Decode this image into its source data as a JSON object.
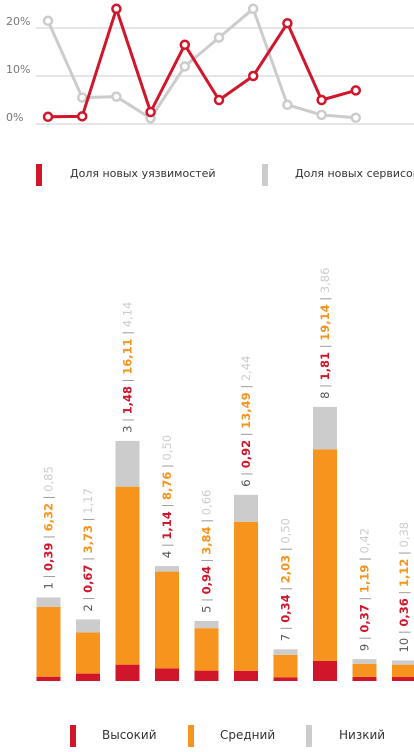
{
  "colors": {
    "red": "#d1162b",
    "grey": "#cccccc",
    "orange": "#f7941d",
    "axis_text": "#777777",
    "grid": "#cccccc",
    "label_text": "#555555"
  },
  "line_legend": {
    "vuln_label": "Доля новых уязвимостей",
    "services_label": "Доля новых сервисов"
  },
  "bar_legend": {
    "high_label": "Высокий",
    "medium_label": "Средний",
    "low_label": "Низкий"
  },
  "chart_data": [
    {
      "type": "line",
      "x": [
        1,
        2,
        3,
        4,
        5,
        6,
        7,
        8,
        9,
        10
      ],
      "y_ticks": [
        "0%",
        "10%",
        "20%"
      ],
      "ylim": [
        0,
        25
      ],
      "grid": true,
      "legend": "bottom",
      "series": [
        {
          "name": "Доля новых уязвимостей",
          "color": "#d1162b",
          "values": [
            1.5,
            1.6,
            24.0,
            2.5,
            16.5,
            5.0,
            10.0,
            21.0,
            5.0,
            7.0
          ]
        },
        {
          "name": "Доля новых сервисов",
          "color": "#cccccc",
          "values": [
            21.5,
            5.5,
            5.7,
            1.2,
            12.0,
            18.0,
            24.0,
            4.0,
            1.9,
            1.3
          ]
        }
      ]
    },
    {
      "type": "bar",
      "stacked": true,
      "categories": [
        "1",
        "2",
        "3",
        "4",
        "5",
        "6",
        "7",
        "8",
        "9",
        "10"
      ],
      "legend": "bottom",
      "series": [
        {
          "name": "Высокий",
          "color": "#d1162b",
          "values": [
            0.39,
            0.67,
            1.48,
            1.14,
            0.94,
            0.92,
            0.34,
            1.81,
            0.37,
            0.36
          ],
          "labels": [
            "0,39",
            "0,67",
            "1,48",
            "1,14",
            "0,94",
            "0,92",
            "0,34",
            "1,81",
            "0,37",
            "0,36"
          ]
        },
        {
          "name": "Средний",
          "color": "#f7941d",
          "values": [
            6.32,
            3.73,
            16.11,
            8.76,
            3.84,
            13.49,
            2.03,
            19.14,
            1.19,
            1.12
          ],
          "labels": [
            "6,32",
            "3,73",
            "16,11",
            "8,76",
            "3,84",
            "13,49",
            "2,03",
            "19,14",
            "1,19",
            "1,12"
          ]
        },
        {
          "name": "Низкий",
          "color": "#cccccc",
          "values": [
            0.85,
            1.17,
            4.14,
            0.5,
            0.66,
            2.44,
            0.5,
            3.86,
            0.42,
            0.38
          ],
          "labels": [
            "0,85",
            "1,17",
            "4,14",
            "0,50",
            "0,66",
            "2,44",
            "0,50",
            "3,86",
            "0,42",
            "0,38"
          ]
        }
      ]
    }
  ]
}
